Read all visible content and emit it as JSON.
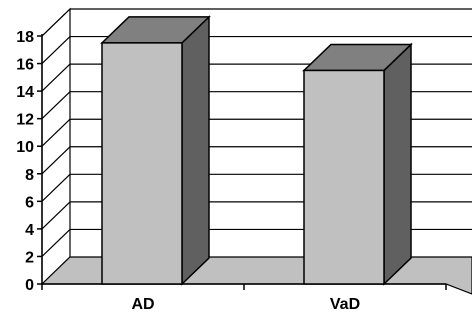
{
  "chart_data": {
    "type": "bar",
    "title": "",
    "xlabel": "",
    "ylabel": "",
    "categories": [
      "AD",
      "VaD"
    ],
    "values": [
      17.5,
      15.5
    ],
    "ylim": [
      0,
      18
    ],
    "yticks": [
      "0",
      "2",
      "4",
      "6",
      "8",
      "10",
      "12",
      "14",
      "16",
      "18"
    ],
    "grid": true,
    "legend": "none",
    "style": "3d-column",
    "colors": {
      "bar_front": "#c0c0c0",
      "bar_side": "#606060",
      "bar_top": "#808080",
      "wall": "#ffffff",
      "floor": "#c0c0c0",
      "gridline": "#000000"
    }
  }
}
